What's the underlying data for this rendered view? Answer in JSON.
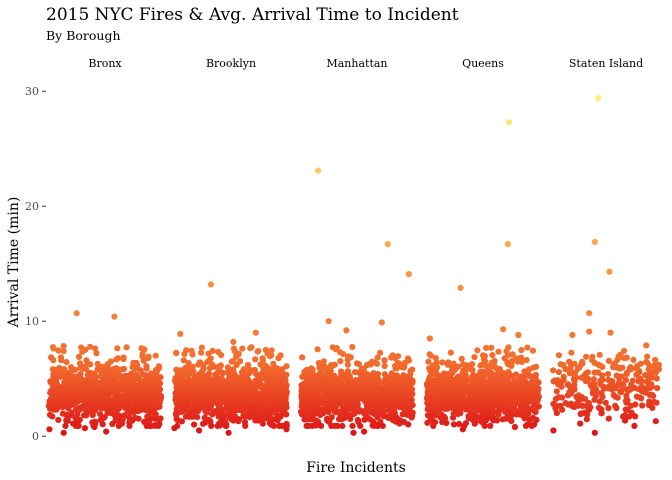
{
  "chart_data": {
    "type": "scatter",
    "title": "2015 NYC Fires & Avg. Arrival Time to Incident",
    "subtitle": "By Borough",
    "xlabel": "Fire Incidents",
    "ylabel": "Arrival Time (min)",
    "ylim": [
      -1.2,
      31.5
    ],
    "yticks": [
      0,
      10,
      20,
      30
    ],
    "grid": false,
    "legend": "none",
    "color_scale": {
      "low": "#dc1016",
      "mid": "#f2692c",
      "high": "#fff27d",
      "domain": [
        0,
        30
      ]
    },
    "facets": [
      {
        "name": "Bronx",
        "n_points": 900,
        "points": [
          {
            "x": 0.26,
            "y": 10.7
          },
          {
            "x": 0.58,
            "y": 10.4
          },
          {
            "x": 0.03,
            "y": 0.6
          },
          {
            "x": 0.15,
            "y": 0.3
          },
          {
            "x": 0.27,
            "y": 0.9
          },
          {
            "x": 0.33,
            "y": 0.7
          },
          {
            "x": 0.41,
            "y": 0.8
          },
          {
            "x": 0.51,
            "y": 0.4
          },
          {
            "x": 0.63,
            "y": 1.2
          },
          {
            "x": 0.15,
            "y": 7.4
          },
          {
            "x": 0.13,
            "y": 6.6
          },
          {
            "x": 0.28,
            "y": 6.9
          },
          {
            "x": 0.55,
            "y": 6.5
          },
          {
            "x": 0.83,
            "y": 7.5
          },
          {
            "x": 0.93,
            "y": 7.0
          }
        ]
      },
      {
        "name": "Brooklyn",
        "n_points": 1100,
        "points": [
          {
            "x": 0.33,
            "y": 13.2
          },
          {
            "x": 0.07,
            "y": 8.9
          },
          {
            "x": 0.71,
            "y": 9.0
          },
          {
            "x": 0.52,
            "y": 8.2
          },
          {
            "x": 0.02,
            "y": 0.7
          },
          {
            "x": 0.23,
            "y": 0.5
          },
          {
            "x": 0.48,
            "y": 0.3
          },
          {
            "x": 0.62,
            "y": 0.9
          },
          {
            "x": 0.97,
            "y": 0.6
          }
        ]
      },
      {
        "name": "Manhattan",
        "n_points": 950,
        "points": [
          {
            "x": 0.17,
            "y": 23.1
          },
          {
            "x": 0.76,
            "y": 16.7
          },
          {
            "x": 0.94,
            "y": 14.1
          },
          {
            "x": 0.26,
            "y": 10.0
          },
          {
            "x": 0.71,
            "y": 9.9
          },
          {
            "x": 0.41,
            "y": 9.2
          },
          {
            "x": 0.09,
            "y": 0.9
          },
          {
            "x": 0.47,
            "y": 0.3
          },
          {
            "x": 0.56,
            "y": 0.4
          },
          {
            "x": 0.86,
            "y": 1.1
          }
        ]
      },
      {
        "name": "Queens",
        "n_points": 950,
        "points": [
          {
            "x": 0.72,
            "y": 27.3
          },
          {
            "x": 0.71,
            "y": 16.7
          },
          {
            "x": 0.31,
            "y": 12.9
          },
          {
            "x": 0.67,
            "y": 9.3
          },
          {
            "x": 0.05,
            "y": 8.5
          },
          {
            "x": 0.8,
            "y": 8.8
          },
          {
            "x": 0.33,
            "y": 0.6
          },
          {
            "x": 0.77,
            "y": 0.8
          }
        ]
      },
      {
        "name": "Staten Island",
        "n_points": 260,
        "points": [
          {
            "x": 0.43,
            "y": 29.4
          },
          {
            "x": 0.4,
            "y": 16.9
          },
          {
            "x": 0.53,
            "y": 14.3
          },
          {
            "x": 0.35,
            "y": 10.7
          },
          {
            "x": 0.2,
            "y": 8.8
          },
          {
            "x": 0.54,
            "y": 9.0
          },
          {
            "x": 0.35,
            "y": 9.1
          },
          {
            "x": 0.86,
            "y": 7.9
          },
          {
            "x": 0.03,
            "y": 0.5
          },
          {
            "x": 0.27,
            "y": 1.1
          },
          {
            "x": 0.4,
            "y": 0.3
          }
        ]
      }
    ]
  }
}
